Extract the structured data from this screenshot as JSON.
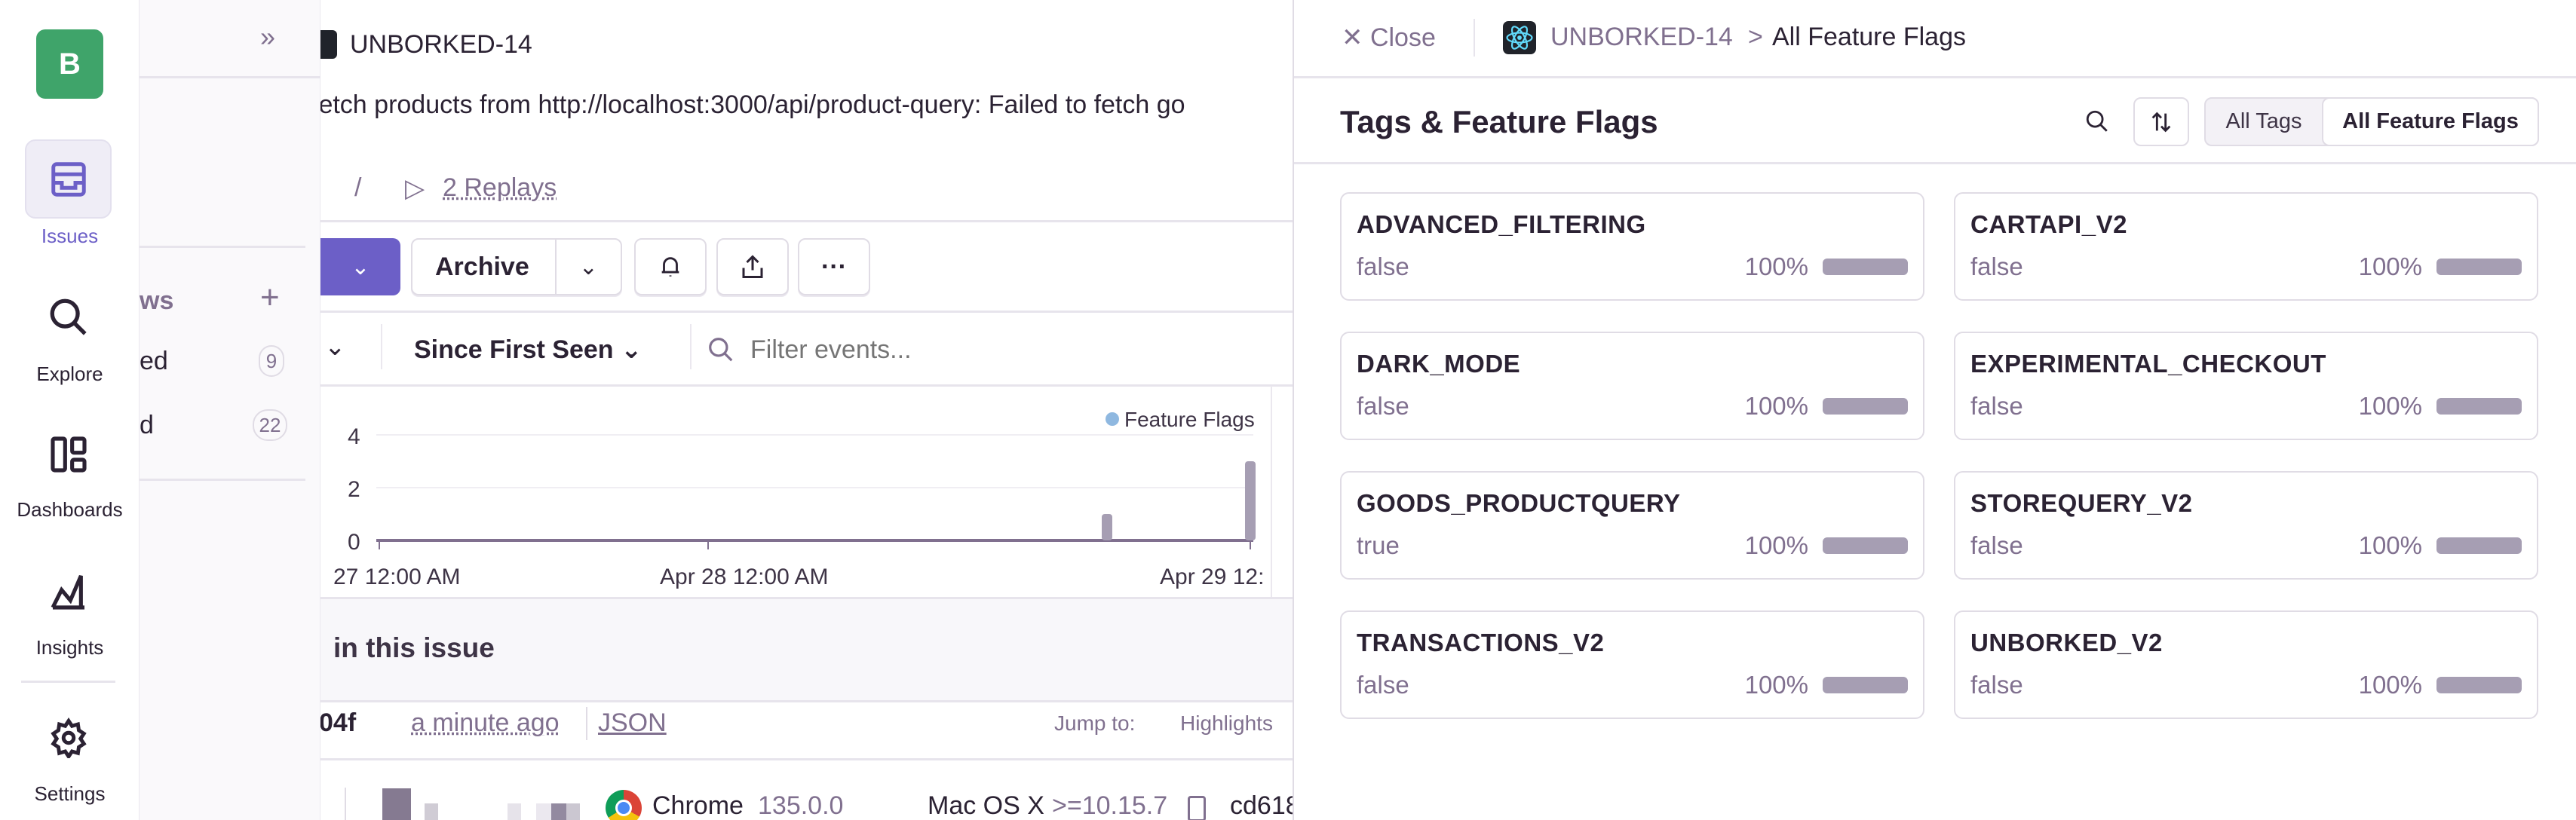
{
  "nav": {
    "avatar_letter": "B",
    "items": [
      {
        "label": "Issues",
        "icon": "inbox-icon",
        "active": true
      },
      {
        "label": "Explore",
        "icon": "search-icon"
      },
      {
        "label": "Dashboards",
        "icon": "dashboard-icon"
      },
      {
        "label": "Insights",
        "icon": "chart-icon"
      },
      {
        "label": "Settings",
        "icon": "gear-icon"
      }
    ]
  },
  "sidebar": {
    "collapse_icon": "double-chevron-right-icon",
    "views_label": "ws",
    "items": [
      {
        "label": "ed",
        "count": "9"
      },
      {
        "label": "d",
        "count": "22"
      }
    ]
  },
  "issue": {
    "short_id": "UNBORKED-14",
    "message": "fetch products from http://localhost:3000/api/product-query: Failed to fetch go",
    "slash": "/",
    "replays": "2 Replays",
    "archive_label": "Archive",
    "since_label": "Since First Seen",
    "filter_placeholder": "Filter events...",
    "section_title": "in this issue",
    "event_id": "04f",
    "event_time": "a minute ago",
    "json_link": "JSON",
    "jump_to": "Jump to:",
    "highlights": "Highlights",
    "browser": "Chrome",
    "browser_version": "135.0.0",
    "os": "Mac OS X",
    "os_version": ">=10.15.7",
    "device": "cd618"
  },
  "chart_data": {
    "type": "bar",
    "legend": [
      "Feature Flags"
    ],
    "legend_placement": "top-right",
    "y_ticks": [
      "4",
      "2",
      "0"
    ],
    "ylim": [
      0,
      4
    ],
    "x_ticks": [
      "27 12:00 AM",
      "Apr 28 12:00 AM",
      "Apr 29 12:"
    ],
    "series": [
      {
        "name": "Feature Flags",
        "points": [
          {
            "x": "Apr 28 ~9:00 PM",
            "y": 1
          },
          {
            "x": "Apr 29 ~12:00 AM",
            "y": 3
          }
        ]
      }
    ],
    "color": "#a69eb3",
    "grid": true
  },
  "drawer": {
    "close_label": "Close",
    "breadcrumb_issue": "UNBORKED-14",
    "breadcrumb_sep": ">",
    "breadcrumb_current": "All Feature Flags",
    "title": "Tags & Feature Flags",
    "segments": [
      {
        "label": "All Tags",
        "selected": false
      },
      {
        "label": "All Feature Flags",
        "selected": true
      }
    ],
    "flags": [
      {
        "name": "ADVANCED_FILTERING",
        "value": "false",
        "percent": "100%",
        "fraction": 1
      },
      {
        "name": "CARTAPI_V2",
        "value": "false",
        "percent": "100%",
        "fraction": 1
      },
      {
        "name": "DARK_MODE",
        "value": "false",
        "percent": "100%",
        "fraction": 1
      },
      {
        "name": "EXPERIMENTAL_CHECKOUT",
        "value": "false",
        "percent": "100%",
        "fraction": 1
      },
      {
        "name": "GOODS_PRODUCTQUERY",
        "value": "true",
        "percent": "100%",
        "fraction": 1
      },
      {
        "name": "STOREQUERY_V2",
        "value": "false",
        "percent": "100%",
        "fraction": 1
      },
      {
        "name": "TRANSACTIONS_V2",
        "value": "false",
        "percent": "100%",
        "fraction": 1
      },
      {
        "name": "UNBORKED_V2",
        "value": "false",
        "percent": "100%",
        "fraction": 1
      }
    ]
  },
  "colors": {
    "accent": "#6c5fc7",
    "text": "#2b2233",
    "muted": "#80708f",
    "border": "#e0dce5",
    "avatar": "#3fa46a"
  }
}
